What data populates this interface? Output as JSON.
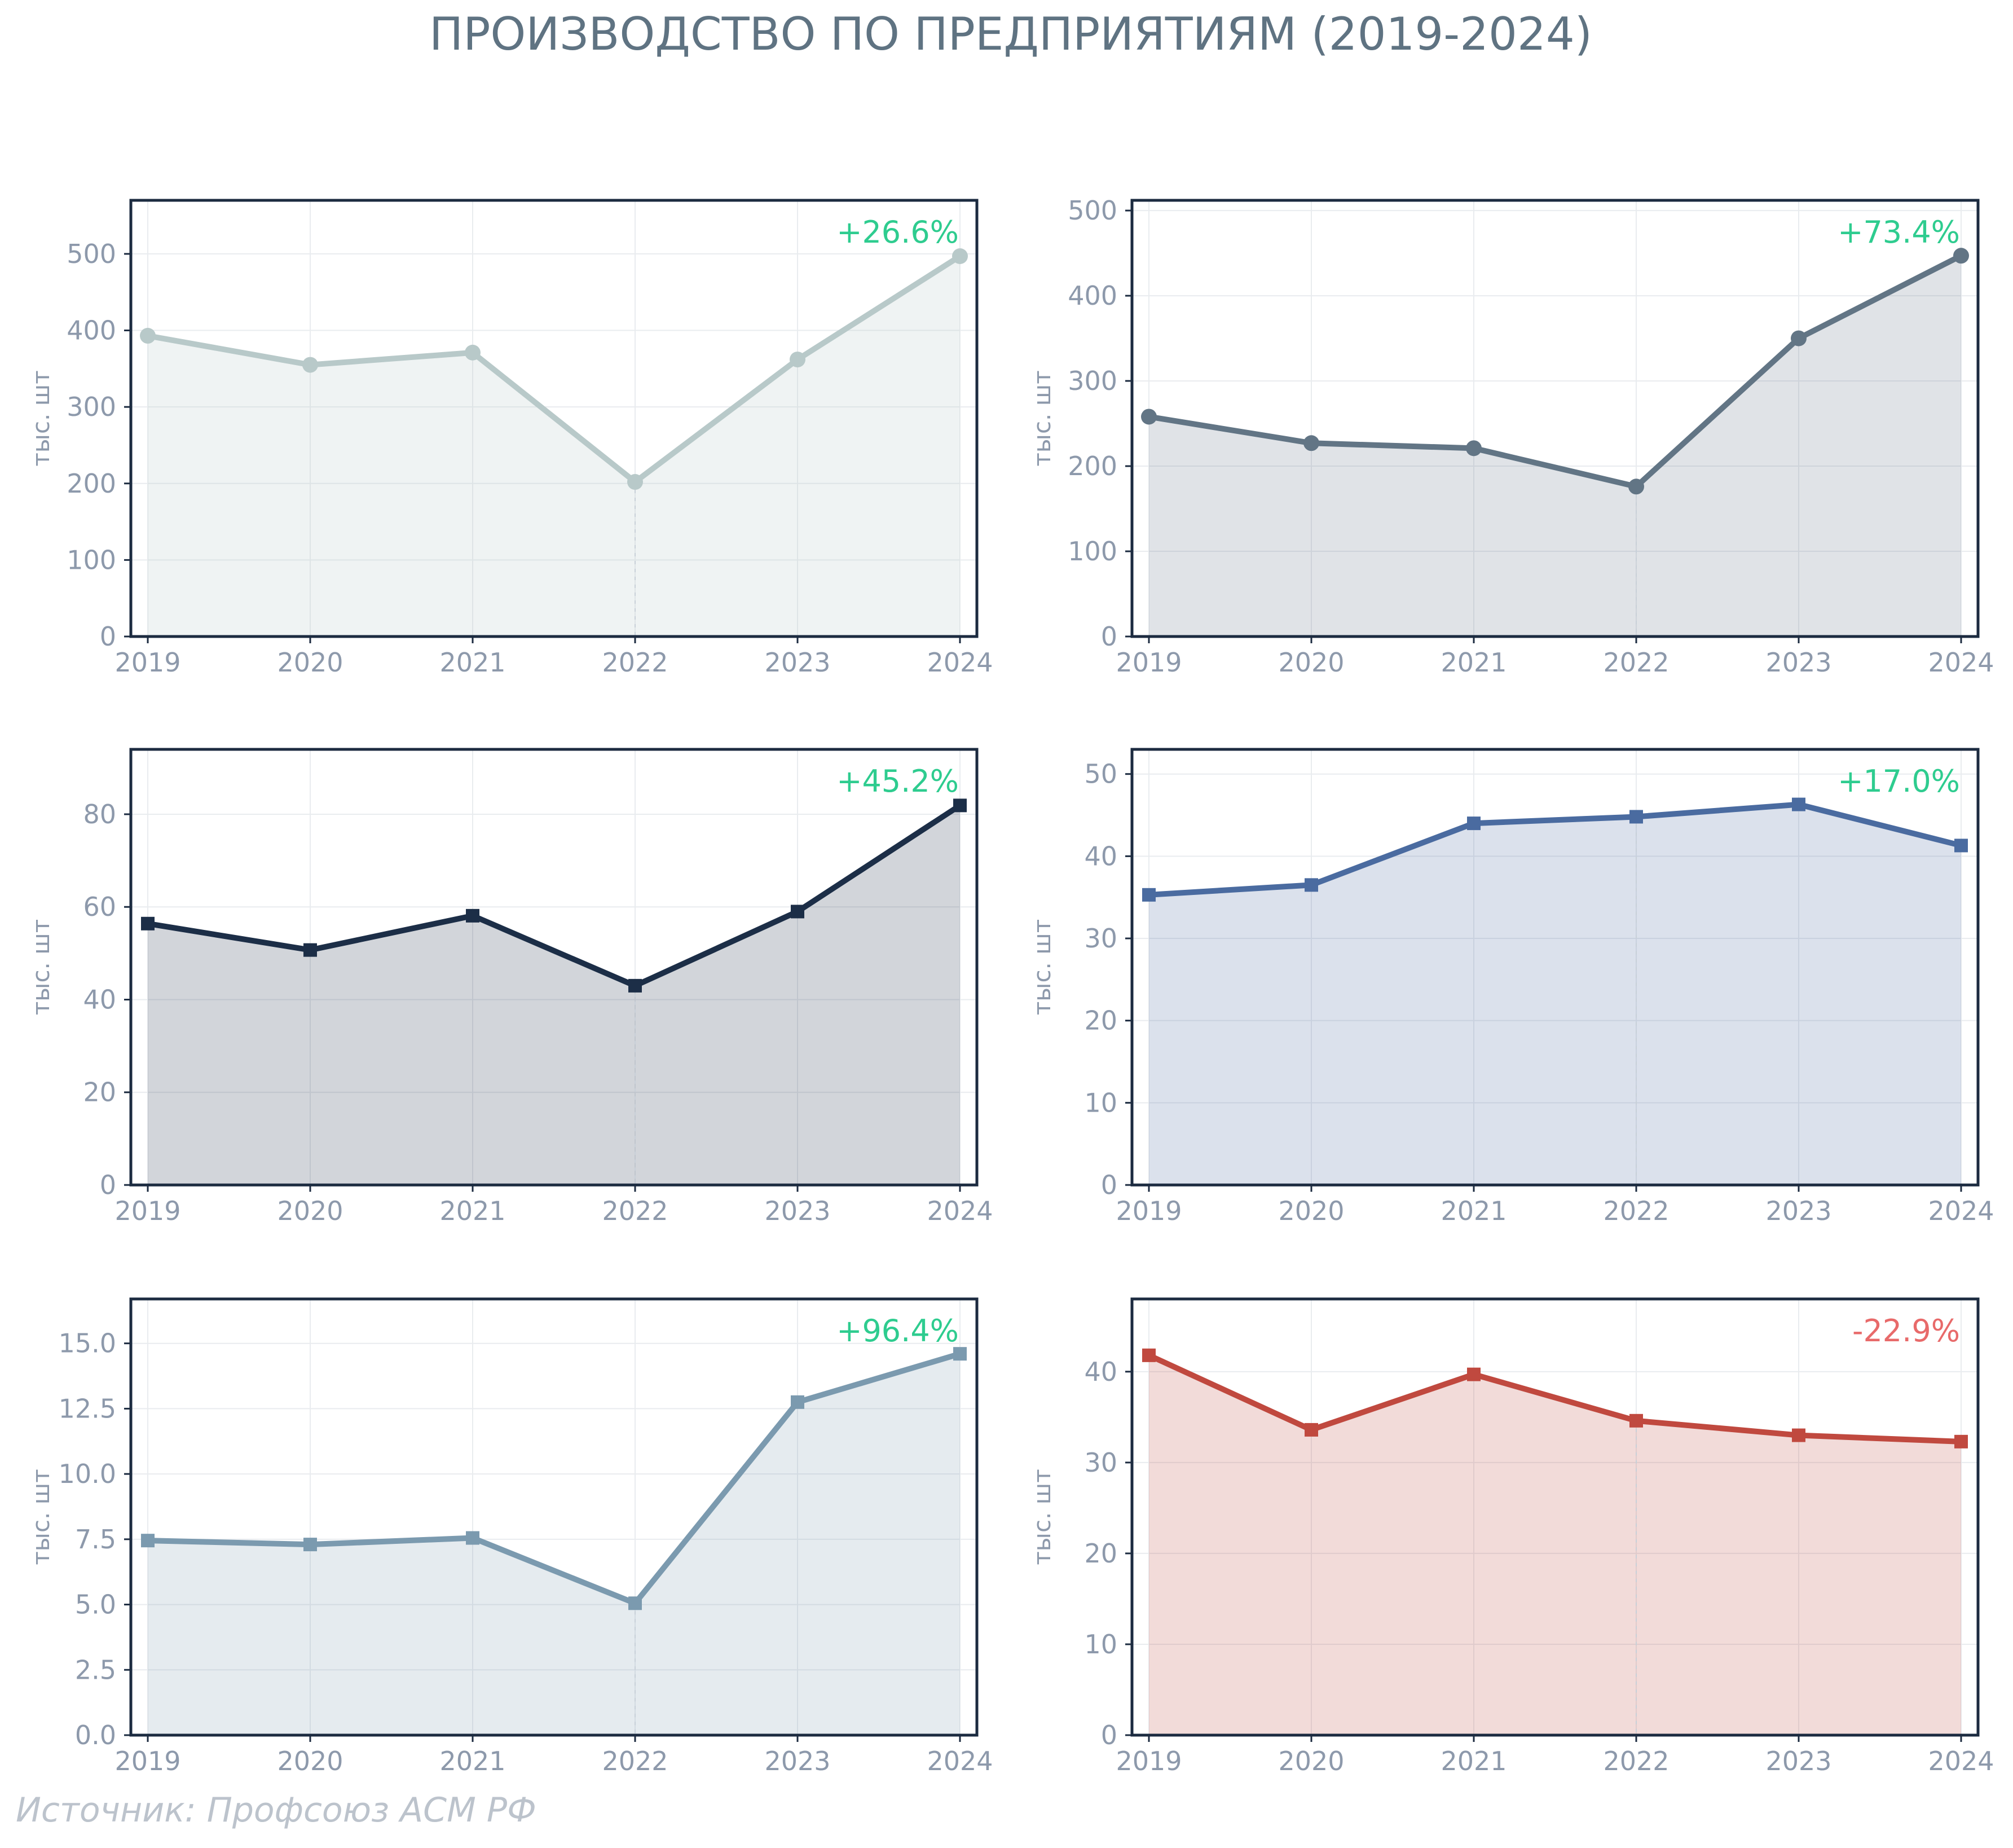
{
  "title": "ПРОИЗВОДСТВО ПО ПРЕДПРИЯТИЯМ (2019-2024)",
  "source": "Источник: Профсоюз АСМ РФ",
  "colors": {
    "positive": "#2ecc8f",
    "negative": "#e86a6a",
    "axis": "#1c2b40",
    "grid": "#e9ecef",
    "ticks": "#8d99ab"
  },
  "chart_data": [
    {
      "type": "line",
      "x": [
        "2019",
        "2020",
        "2021",
        "2022",
        "2023",
        "2024"
      ],
      "values": [
        393,
        355,
        371,
        202,
        362,
        497
      ],
      "ylabel": "тыс. шт",
      "ylim": [
        0,
        570
      ],
      "yticks": [
        "0",
        "100",
        "200",
        "300",
        "400",
        "500"
      ],
      "annotation": "+26.6%",
      "annotation_sign": "positive",
      "color": "#b8c9c9",
      "marker": "circle",
      "fill_opacity": 0.22,
      "grid": true
    },
    {
      "type": "line",
      "x": [
        "2019",
        "2020",
        "2021",
        "2022",
        "2023",
        "2024"
      ],
      "values": [
        258,
        227,
        221,
        176,
        350,
        447
      ],
      "ylabel": "тыс. шт",
      "ylim": [
        0,
        512
      ],
      "yticks": [
        "0",
        "100",
        "200",
        "300",
        "400",
        "500"
      ],
      "annotation": "+73.4%",
      "annotation_sign": "positive",
      "color": "#627585",
      "marker": "circle",
      "fill_opacity": 0.2,
      "grid": true
    },
    {
      "type": "line",
      "x": [
        "2019",
        "2020",
        "2021",
        "2022",
        "2023",
        "2024"
      ],
      "values": [
        56.4,
        50.7,
        58.1,
        43.0,
        59.0,
        81.9
      ],
      "ylabel": "тыс. шт",
      "ylim": [
        0,
        94
      ],
      "yticks": [
        "0",
        "20",
        "40",
        "60",
        "80"
      ],
      "annotation": "+45.2%",
      "annotation_sign": "positive",
      "color": "#1c2e47",
      "marker": "square",
      "fill_opacity": 0.2,
      "grid": true
    },
    {
      "type": "line",
      "x": [
        "2019",
        "2020",
        "2021",
        "2022",
        "2023",
        "2024"
      ],
      "values": [
        35.3,
        36.5,
        44.0,
        44.8,
        46.3,
        41.3
      ],
      "ylabel": "тыс. шт",
      "ylim": [
        0,
        53
      ],
      "yticks": [
        "0",
        "10",
        "20",
        "30",
        "40",
        "50"
      ],
      "annotation": "+17.0%",
      "annotation_sign": "positive",
      "color": "#4a6ba0",
      "marker": "square",
      "fill_opacity": 0.2,
      "grid": true
    },
    {
      "type": "line",
      "x": [
        "2019",
        "2020",
        "2021",
        "2022",
        "2023",
        "2024"
      ],
      "values": [
        7.45,
        7.3,
        7.55,
        5.05,
        12.75,
        14.6
      ],
      "ylabel": "тыс. шт",
      "ylim": [
        0,
        16.7
      ],
      "yticks": [
        "0.0",
        "2.5",
        "5.0",
        "7.5",
        "10.0",
        "12.5",
        "15.0"
      ],
      "annotation": "+96.4%",
      "annotation_sign": "positive",
      "color": "#7b9aaf",
      "marker": "square",
      "fill_opacity": 0.2,
      "grid": true
    },
    {
      "type": "line",
      "x": [
        "2019",
        "2020",
        "2021",
        "2022",
        "2023",
        "2024"
      ],
      "values": [
        41.8,
        33.6,
        39.7,
        34.6,
        33.0,
        32.3
      ],
      "ylabel": "тыс. шт",
      "ylim": [
        0,
        48
      ],
      "yticks": [
        "0",
        "10",
        "20",
        "30",
        "40"
      ],
      "annotation": "-22.9%",
      "annotation_sign": "negative",
      "color": "#c0493f",
      "marker": "square",
      "fill_opacity": 0.2,
      "grid": true
    }
  ]
}
